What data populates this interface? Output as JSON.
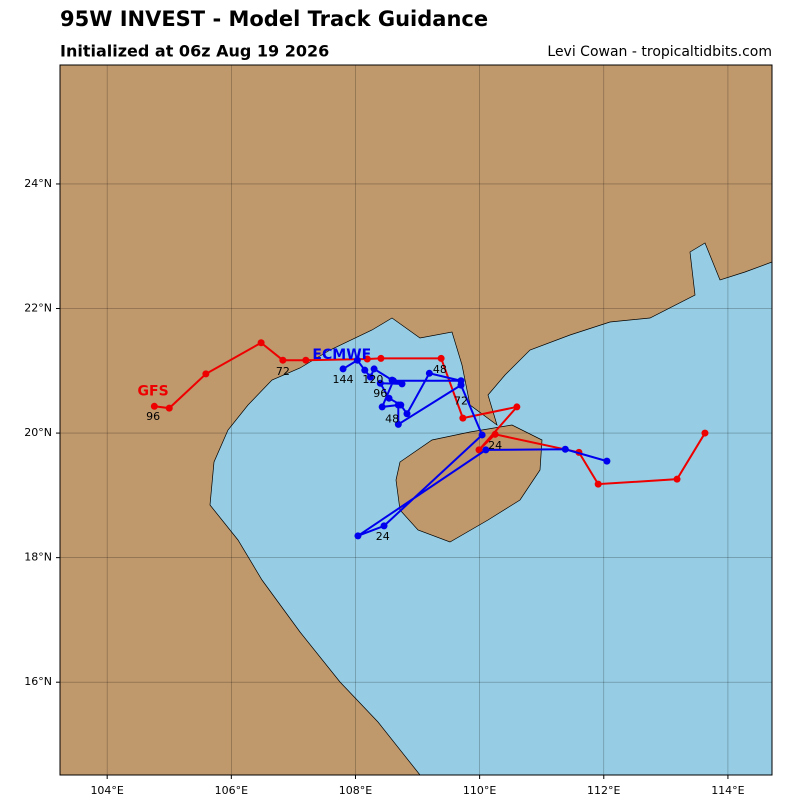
{
  "chart_data": {
    "type": "track-map",
    "title": "95W INVEST - Model Track Guidance",
    "subtitle": "Initialized at 06z Aug 19 2026",
    "credit": "Levi Cowan - tropicaltidbits.com",
    "xlim": [
      103.24,
      114.71
    ],
    "ylim": [
      14.51,
      25.91
    ],
    "xticks": [
      {
        "value": 104,
        "label": "104°E"
      },
      {
        "value": 106,
        "label": "106°E"
      },
      {
        "value": 108,
        "label": "108°E"
      },
      {
        "value": 110,
        "label": "110°E"
      },
      {
        "value": 112,
        "label": "112°E"
      },
      {
        "value": 114,
        "label": "114°E"
      }
    ],
    "yticks": [
      {
        "value": 16,
        "label": "16°N"
      },
      {
        "value": 18,
        "label": "18°N"
      },
      {
        "value": 20,
        "label": "20°N"
      },
      {
        "value": 22,
        "label": "22°N"
      },
      {
        "value": 24,
        "label": "24°N"
      }
    ],
    "grid": true,
    "series": [
      {
        "name": "GFS",
        "color": "#ee0000",
        "name_lon": 104.74,
        "name_lat": 20.67,
        "lon": [
          113.63,
          113.18,
          111.91,
          111.6,
          110.25,
          109.99,
          110.6,
          109.73,
          109.38,
          108.41,
          108.19,
          107.2,
          106.83,
          106.48,
          105.59,
          105.0,
          104.76
        ],
        "lat": [
          20.0,
          19.26,
          19.18,
          19.69,
          19.98,
          19.73,
          20.42,
          20.24,
          21.2,
          21.2,
          21.19,
          21.17,
          21.17,
          21.45,
          20.95,
          20.4,
          20.43
        ]
      },
      {
        "name": "ECMWF",
        "color": "#0000ee",
        "name_lon": 107.78,
        "name_lat": 21.25,
        "lon": [
          112.05,
          111.38,
          110.1,
          108.04,
          108.46,
          110.04,
          109.7,
          108.69,
          108.69,
          108.43,
          108.61,
          109.7,
          109.19,
          108.83,
          108.73,
          108.54,
          108.4,
          108.75,
          108.59,
          108.3,
          108.24,
          108.15,
          108.03,
          107.8
        ],
        "lat": [
          19.55,
          19.74,
          19.73,
          18.35,
          18.51,
          19.97,
          20.77,
          20.14,
          20.45,
          20.42,
          20.84,
          20.84,
          20.96,
          20.31,
          20.45,
          20.56,
          20.8,
          20.79,
          20.85,
          21.03,
          20.9,
          21.01,
          21.17,
          21.03
        ]
      }
    ],
    "annotations": [
      {
        "text": "24",
        "lon": 110.25,
        "lat": 19.79,
        "series": 0
      },
      {
        "text": "48",
        "lon": 109.36,
        "lat": 21.01,
        "series": 0
      },
      {
        "text": "72",
        "lon": 106.83,
        "lat": 20.98,
        "series": 0
      },
      {
        "text": "96",
        "lon": 104.74,
        "lat": 20.26,
        "series": 0
      },
      {
        "text": "24",
        "lon": 108.44,
        "lat": 18.33,
        "series": 1
      },
      {
        "text": "48",
        "lon": 108.59,
        "lat": 20.22,
        "series": 1
      },
      {
        "text": "72",
        "lon": 109.7,
        "lat": 20.51,
        "series": 1
      },
      {
        "text": "96",
        "lon": 108.4,
        "lat": 20.63,
        "series": 1
      },
      {
        "text": "120",
        "lon": 108.28,
        "lat": 20.85,
        "series": 1
      },
      {
        "text": "144",
        "lon": 107.8,
        "lat": 20.85,
        "series": 1
      }
    ]
  }
}
